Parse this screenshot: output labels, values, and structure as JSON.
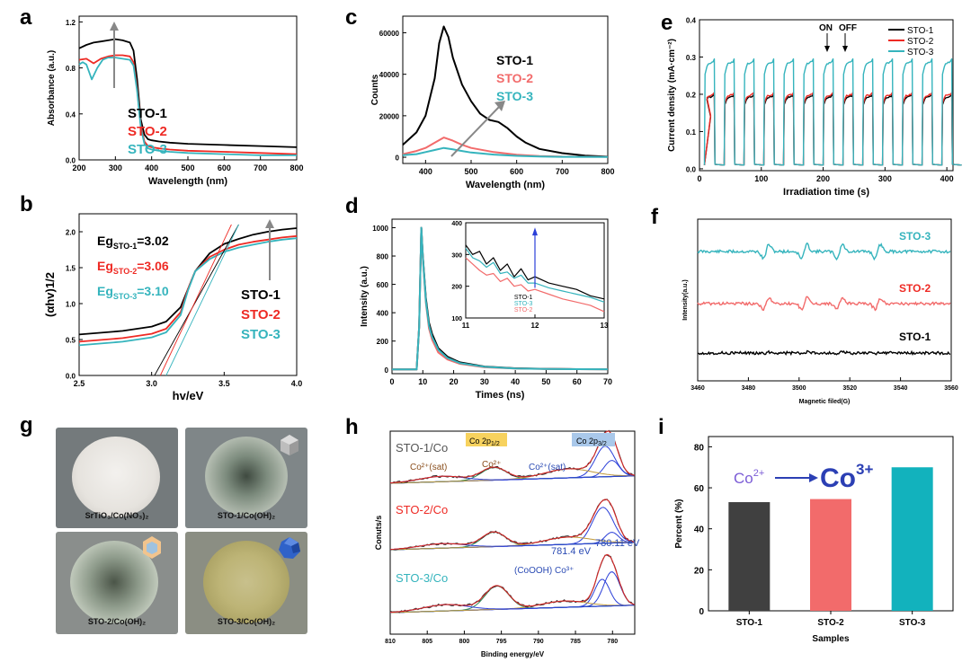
{
  "panels": {
    "a": {
      "label": "a"
    },
    "b": {
      "label": "b"
    },
    "c": {
      "label": "c"
    },
    "d": {
      "label": "d"
    },
    "e": {
      "label": "e"
    },
    "f": {
      "label": "f"
    },
    "g": {
      "label": "g"
    },
    "h": {
      "label": "h"
    },
    "i": {
      "label": "i"
    }
  },
  "colors": {
    "sto1": "#000000",
    "sto2": "#ee2a24",
    "sto3": "#35b4bd",
    "sto1_bar": "#404040",
    "sto2_bar": "#f26b6b",
    "sto3_bar": "#12b2bd"
  },
  "photos": {
    "p1": {
      "caption": "SrTiO₃/Co(NO₃)₂"
    },
    "p2": {
      "caption": "STO-1/Co(OH)₂"
    },
    "p3": {
      "caption": "STO-2/Co(OH)₂"
    },
    "p4": {
      "caption": "STO-3/Co(OH)₂"
    }
  },
  "chart_data": [
    {
      "id": "a",
      "type": "line",
      "xlabel": "Wavelength (nm)",
      "ylabel": "Absorbance (a.u.)",
      "xlim": [
        200,
        800
      ],
      "ylim": [
        0,
        1.25
      ],
      "xticks": [
        200,
        300,
        400,
        500,
        600,
        700,
        800
      ],
      "yticks": [
        0.0,
        0.4,
        0.8,
        1.2
      ],
      "series": [
        {
          "name": "STO-1",
          "x": [
            200,
            220,
            240,
            260,
            280,
            300,
            320,
            340,
            350,
            360,
            370,
            380,
            390,
            400,
            420,
            450,
            500,
            600,
            700,
            800
          ],
          "y": [
            0.97,
            1.0,
            1.02,
            1.03,
            1.04,
            1.05,
            1.04,
            1.02,
            0.95,
            0.7,
            0.35,
            0.22,
            0.18,
            0.17,
            0.16,
            0.15,
            0.14,
            0.13,
            0.12,
            0.11
          ]
        },
        {
          "name": "STO-2",
          "x": [
            200,
            220,
            240,
            260,
            280,
            300,
            320,
            340,
            350,
            360,
            370,
            380,
            390,
            400,
            420,
            450,
            500,
            600,
            700,
            800
          ],
          "y": [
            0.87,
            0.88,
            0.84,
            0.88,
            0.9,
            0.91,
            0.91,
            0.9,
            0.85,
            0.62,
            0.3,
            0.16,
            0.12,
            0.11,
            0.1,
            0.09,
            0.08,
            0.07,
            0.06,
            0.05
          ]
        },
        {
          "name": "STO-3",
          "x": [
            200,
            210,
            220,
            235,
            250,
            265,
            280,
            300,
            320,
            340,
            350,
            360,
            370,
            380,
            390,
            400,
            420,
            450,
            500,
            600,
            700,
            800
          ],
          "y": [
            0.83,
            0.85,
            0.83,
            0.7,
            0.8,
            0.87,
            0.89,
            0.89,
            0.88,
            0.87,
            0.82,
            0.6,
            0.28,
            0.14,
            0.1,
            0.09,
            0.08,
            0.07,
            0.06,
            0.05,
            0.04,
            0.04
          ]
        }
      ],
      "annotations": [
        "STO-1",
        "STO-2",
        "STO-3"
      ]
    },
    {
      "id": "b",
      "type": "line",
      "xlabel": "hv/eV",
      "ylabel": "(αhv)1/2",
      "xlim": [
        2.5,
        4.0
      ],
      "ylim": [
        0,
        2.25
      ],
      "xticks": [
        2.5,
        3.0,
        3.5,
        4.0
      ],
      "yticks": [
        0.0,
        0.5,
        1.0,
        1.5,
        2.0
      ],
      "annotations": [
        {
          "base": "Eg",
          "sub": "STO-1",
          "value": "=3.02"
        },
        {
          "base": "Eg",
          "sub": "STO-2",
          "value": "=3.06"
        },
        {
          "base": "Eg",
          "sub": "STO-3",
          "value": "=3.10"
        }
      ],
      "legend_text": [
        "STO-1",
        "STO-2",
        "STO-3"
      ],
      "series": [
        {
          "name": "STO-1",
          "x": [
            2.5,
            2.8,
            3.0,
            3.1,
            3.2,
            3.25,
            3.3,
            3.4,
            3.5,
            3.6,
            3.7,
            3.8,
            3.9,
            4.0
          ],
          "y": [
            0.57,
            0.62,
            0.68,
            0.75,
            0.95,
            1.2,
            1.45,
            1.7,
            1.83,
            1.9,
            1.96,
            2.0,
            2.03,
            2.05
          ]
        },
        {
          "name": "STO-2",
          "x": [
            2.5,
            2.8,
            3.0,
            3.1,
            3.2,
            3.25,
            3.3,
            3.4,
            3.5,
            3.6,
            3.7,
            3.8,
            3.9,
            4.0
          ],
          "y": [
            0.47,
            0.52,
            0.58,
            0.65,
            0.88,
            1.2,
            1.45,
            1.65,
            1.75,
            1.82,
            1.86,
            1.89,
            1.92,
            1.94
          ]
        },
        {
          "name": "STO-3",
          "x": [
            2.5,
            2.8,
            3.0,
            3.1,
            3.2,
            3.25,
            3.3,
            3.4,
            3.5,
            3.6,
            3.7,
            3.8,
            3.9,
            4.0
          ],
          "y": [
            0.42,
            0.47,
            0.53,
            0.6,
            0.84,
            1.18,
            1.45,
            1.62,
            1.72,
            1.78,
            1.82,
            1.86,
            1.89,
            1.91
          ]
        }
      ],
      "tangents": [
        {
          "name": "STO-1",
          "x0": 3.02,
          "x1": 3.6
        },
        {
          "name": "STO-2",
          "x0": 3.06,
          "x1": 3.55
        },
        {
          "name": "STO-3",
          "x0": 3.1,
          "x1": 3.6
        }
      ]
    },
    {
      "id": "c",
      "type": "line",
      "xlabel": "Wavelength (nm)",
      "ylabel": "Counts",
      "xlim": [
        350,
        800
      ],
      "ylim": [
        -3000,
        68000
      ],
      "xticks": [
        400,
        500,
        600,
        700,
        800
      ],
      "yticks": [
        0,
        20000,
        40000,
        60000
      ],
      "series": [
        {
          "name": "STO-1",
          "x": [
            350,
            380,
            400,
            420,
            430,
            440,
            450,
            460,
            480,
            500,
            520,
            540,
            560,
            580,
            600,
            620,
            650,
            700,
            750,
            800
          ],
          "y": [
            6000,
            12000,
            20000,
            38000,
            55000,
            63000,
            58000,
            48000,
            35000,
            27000,
            21000,
            18000,
            17000,
            14000,
            10000,
            7000,
            4000,
            2000,
            800,
            300
          ]
        },
        {
          "name": "STO-2",
          "x": [
            350,
            380,
            400,
            420,
            440,
            460,
            480,
            500,
            550,
            600,
            650,
            700,
            800
          ],
          "y": [
            1500,
            3000,
            4500,
            7000,
            9500,
            8000,
            6000,
            4500,
            2500,
            1200,
            600,
            300,
            200
          ]
        },
        {
          "name": "STO-3",
          "x": [
            350,
            380,
            400,
            420,
            440,
            460,
            480,
            500,
            550,
            600,
            650,
            700,
            800
          ],
          "y": [
            1000,
            1500,
            2500,
            3500,
            4500,
            3800,
            3000,
            2300,
            1300,
            700,
            350,
            200,
            100
          ]
        }
      ],
      "legend_text": [
        "STO-1",
        "STO-2",
        "STO-3"
      ]
    },
    {
      "id": "d",
      "type": "line",
      "xlabel": "Times (ns)",
      "ylabel": "Intensity (a.u.)",
      "xlim": [
        0,
        70
      ],
      "ylim": [
        -30,
        1060
      ],
      "xticks": [
        0,
        10,
        20,
        30,
        40,
        50,
        60,
        70
      ],
      "yticks": [
        0,
        200,
        400,
        600,
        800,
        1000
      ],
      "series": [
        {
          "name": "STO-1",
          "x": [
            0,
            8,
            8.8,
            9.5,
            10,
            11,
            12,
            13,
            15,
            18,
            22,
            30,
            40,
            50,
            60,
            70
          ],
          "y": [
            0,
            0,
            300,
            1000,
            800,
            500,
            330,
            250,
            150,
            90,
            50,
            20,
            8,
            4,
            2,
            1
          ]
        },
        {
          "name": "STO-2",
          "x": [
            0,
            8,
            8.8,
            9.5,
            10,
            11,
            12,
            13,
            15,
            18,
            22,
            30,
            40,
            50,
            60,
            70
          ],
          "y": [
            0,
            0,
            300,
            1000,
            780,
            470,
            290,
            210,
            120,
            70,
            40,
            15,
            6,
            3,
            2,
            1
          ]
        },
        {
          "name": "STO-3",
          "x": [
            0,
            8,
            8.8,
            9.5,
            10,
            11,
            12,
            13,
            15,
            18,
            22,
            30,
            40,
            50,
            60,
            70
          ],
          "y": [
            0,
            0,
            300,
            1000,
            790,
            480,
            310,
            230,
            140,
            80,
            45,
            18,
            7,
            3,
            2,
            1
          ]
        }
      ],
      "inset": {
        "xlim": [
          11,
          13
        ],
        "ylim": [
          100,
          400
        ],
        "xticks": [
          11,
          12,
          13
        ],
        "yticks": [
          100,
          200,
          300,
          400
        ],
        "series": [
          {
            "name": "STO-1",
            "x": [
              11,
              11.1,
              11.2,
              11.3,
              11.4,
              11.5,
              11.6,
              11.7,
              11.8,
              11.9,
              12.0,
              12.2,
              12.4,
              12.6,
              12.8,
              13.0
            ],
            "y": [
              330,
              300,
              310,
              270,
              290,
              250,
              270,
              230,
              255,
              220,
              230,
              210,
              200,
              190,
              170,
              160
            ]
          },
          {
            "name": "STO-3",
            "x": [
              11,
              11.1,
              11.2,
              11.3,
              11.4,
              11.5,
              11.6,
              11.7,
              11.8,
              11.9,
              12.0,
              12.2,
              12.4,
              12.6,
              12.8,
              13.0
            ],
            "y": [
              320,
              290,
              280,
              260,
              275,
              240,
              245,
              225,
              235,
              210,
              210,
              195,
              185,
              175,
              165,
              150
            ]
          },
          {
            "name": "STO-2",
            "x": [
              11,
              11.1,
              11.2,
              11.3,
              11.4,
              11.5,
              11.6,
              11.7,
              11.8,
              11.9,
              12.0,
              12.2,
              12.4,
              12.6,
              12.8,
              13.0
            ],
            "y": [
              290,
              270,
              250,
              235,
              240,
              215,
              225,
              200,
              205,
              185,
              190,
              175,
              160,
              150,
              140,
              120
            ]
          }
        ],
        "legend_text": [
          "STO-1",
          "STO-3",
          "STO-2"
        ]
      }
    },
    {
      "id": "e",
      "type": "line",
      "xlabel": "Irradiation time (s)",
      "ylabel": "Current density (mA·cm⁻²)",
      "xlim": [
        0,
        410
      ],
      "ylim": [
        -0.005,
        0.4
      ],
      "xticks": [
        0,
        100,
        200,
        300,
        400
      ],
      "yticks": [
        0.0,
        0.1,
        0.2,
        0.3,
        0.4
      ],
      "annotations": [
        "ON",
        "OFF"
      ],
      "period_s": 32,
      "on_levels": {
        "STO-1": 0.2,
        "STO-2": 0.205,
        "STO-3": 0.295
      },
      "series_names": [
        "STO-1",
        "STO-2",
        "STO-3"
      ]
    },
    {
      "id": "f",
      "type": "line",
      "xlabel": "Magnetic filed(G)",
      "ylabel": "Intensity(a.u.)",
      "xlim": [
        3460,
        3560
      ],
      "xticks": [
        3460,
        3480,
        3500,
        3520,
        3540,
        3560
      ],
      "lines": [
        3487,
        3502,
        3516,
        3531
      ],
      "series": [
        {
          "name": "STO-3",
          "offset": 2,
          "amplitude": 1.0
        },
        {
          "name": "STO-2",
          "offset": 1,
          "amplitude": 0.8
        },
        {
          "name": "STO-1",
          "offset": 0,
          "amplitude": 0.12
        }
      ]
    },
    {
      "id": "h",
      "type": "line",
      "xlabel": "Binding energy/eV",
      "ylabel": "Conuts/s",
      "xlim": [
        810,
        777
      ],
      "xticks": [
        810,
        805,
        800,
        795,
        790,
        785,
        780
      ],
      "labels": {
        "sto1": "STO-1/Co",
        "sto2": "STO-2/Co",
        "sto3": "STO-3/Co",
        "co2p12": "Co 2p",
        "co2p12_sub": "1/2",
        "co2p32": "Co 2p",
        "co2p32_sub": "3/2",
        "co2sat_left": "Co²⁺(sat)",
        "co2": "Co²⁺",
        "co2sat_right": "Co²⁺(sat)",
        "e781": "781.4 eV",
        "e780": "780.11 eV",
        "cooh": "(CoOOH) Co³⁺"
      }
    },
    {
      "id": "i",
      "type": "bar",
      "xlabel": "Samples",
      "ylabel": "Percent (%)",
      "ylim": [
        0,
        85
      ],
      "yticks": [
        0,
        20,
        40,
        60,
        80
      ],
      "categories": [
        "STO-1",
        "STO-2",
        "STO-3"
      ],
      "values": [
        53,
        54.5,
        70
      ],
      "annotation": {
        "from": "Co",
        "from_sup": "2+",
        "to": "Co",
        "to_sup": "3+"
      }
    }
  ]
}
